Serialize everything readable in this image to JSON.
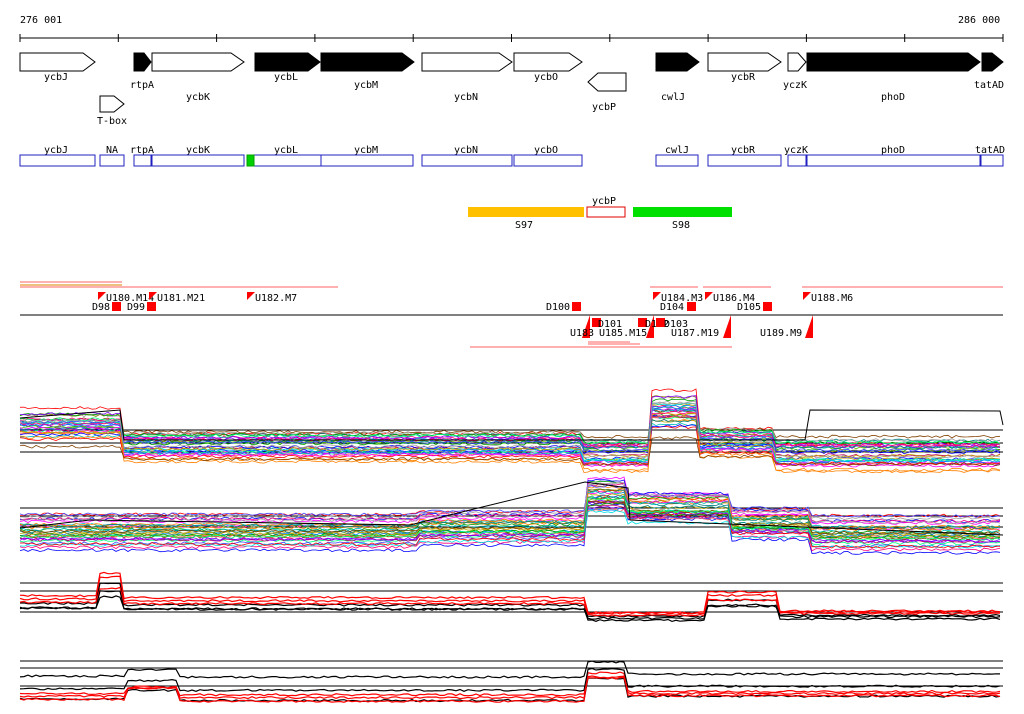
{
  "axis": {
    "start_label": "276 001",
    "end_label": "286 000"
  },
  "colors": {
    "feature_box": "#2020c0",
    "segment_S97": "#ffc000",
    "segment_S98": "#00e000",
    "marker": "#ff0000",
    "trace_black": "#000000"
  },
  "genes": [
    {
      "label": "ycbJ",
      "fill": "open",
      "dir": "right"
    },
    {
      "label": "rtpA",
      "fill": "solid",
      "dir": "right"
    },
    {
      "label": "ycbK",
      "fill": "open",
      "dir": "right"
    },
    {
      "label": "ycbL",
      "fill": "solid",
      "dir": "right"
    },
    {
      "label": "ycbM",
      "fill": "solid",
      "dir": "right"
    },
    {
      "label": "ycbN",
      "fill": "open",
      "dir": "right"
    },
    {
      "label": "ycbO",
      "fill": "open",
      "dir": "right"
    },
    {
      "label": "ycbP",
      "fill": "open",
      "dir": "left"
    },
    {
      "label": "cwlJ",
      "fill": "solid",
      "dir": "right"
    },
    {
      "label": "ycbR",
      "fill": "open",
      "dir": "right"
    },
    {
      "label": "yczK",
      "fill": "open",
      "dir": "right"
    },
    {
      "label": "phoD",
      "fill": "solid",
      "dir": "right"
    },
    {
      "label": "tatAD",
      "fill": "solid",
      "dir": "right"
    },
    {
      "label": "T-box",
      "fill": "open",
      "dir": "right"
    }
  ],
  "feature_boxes": [
    {
      "label": "ycbJ"
    },
    {
      "label": "NA"
    },
    {
      "label": "rtpA"
    },
    {
      "label": "ycbK"
    },
    {
      "label": "ycbL"
    },
    {
      "label": "ycbM"
    },
    {
      "label": "ycbN"
    },
    {
      "label": "ycbO"
    },
    {
      "label": "cwlJ"
    },
    {
      "label": "ycbR"
    },
    {
      "label": "yczK"
    },
    {
      "label": "phoD"
    },
    {
      "label": "tatAD"
    }
  ],
  "segments": [
    {
      "label": "S97"
    },
    {
      "label": "ycbP"
    },
    {
      "label": "S98"
    }
  ],
  "markers": [
    {
      "label": "D98"
    },
    {
      "label": "U180.M14"
    },
    {
      "label": "D99"
    },
    {
      "label": "U181.M21"
    },
    {
      "label": "U182.M7"
    },
    {
      "label": "D100"
    },
    {
      "label": "U184.M3"
    },
    {
      "label": "D104"
    },
    {
      "label": "U186.M4"
    },
    {
      "label": "D105"
    },
    {
      "label": "U188.M6"
    },
    {
      "label": "U183"
    },
    {
      "label": "D101"
    },
    {
      "label": "U185.M15"
    },
    {
      "label": "D102"
    },
    {
      "label": "D103"
    },
    {
      "label": "U187.M19"
    },
    {
      "label": "U189.M9"
    }
  ]
}
